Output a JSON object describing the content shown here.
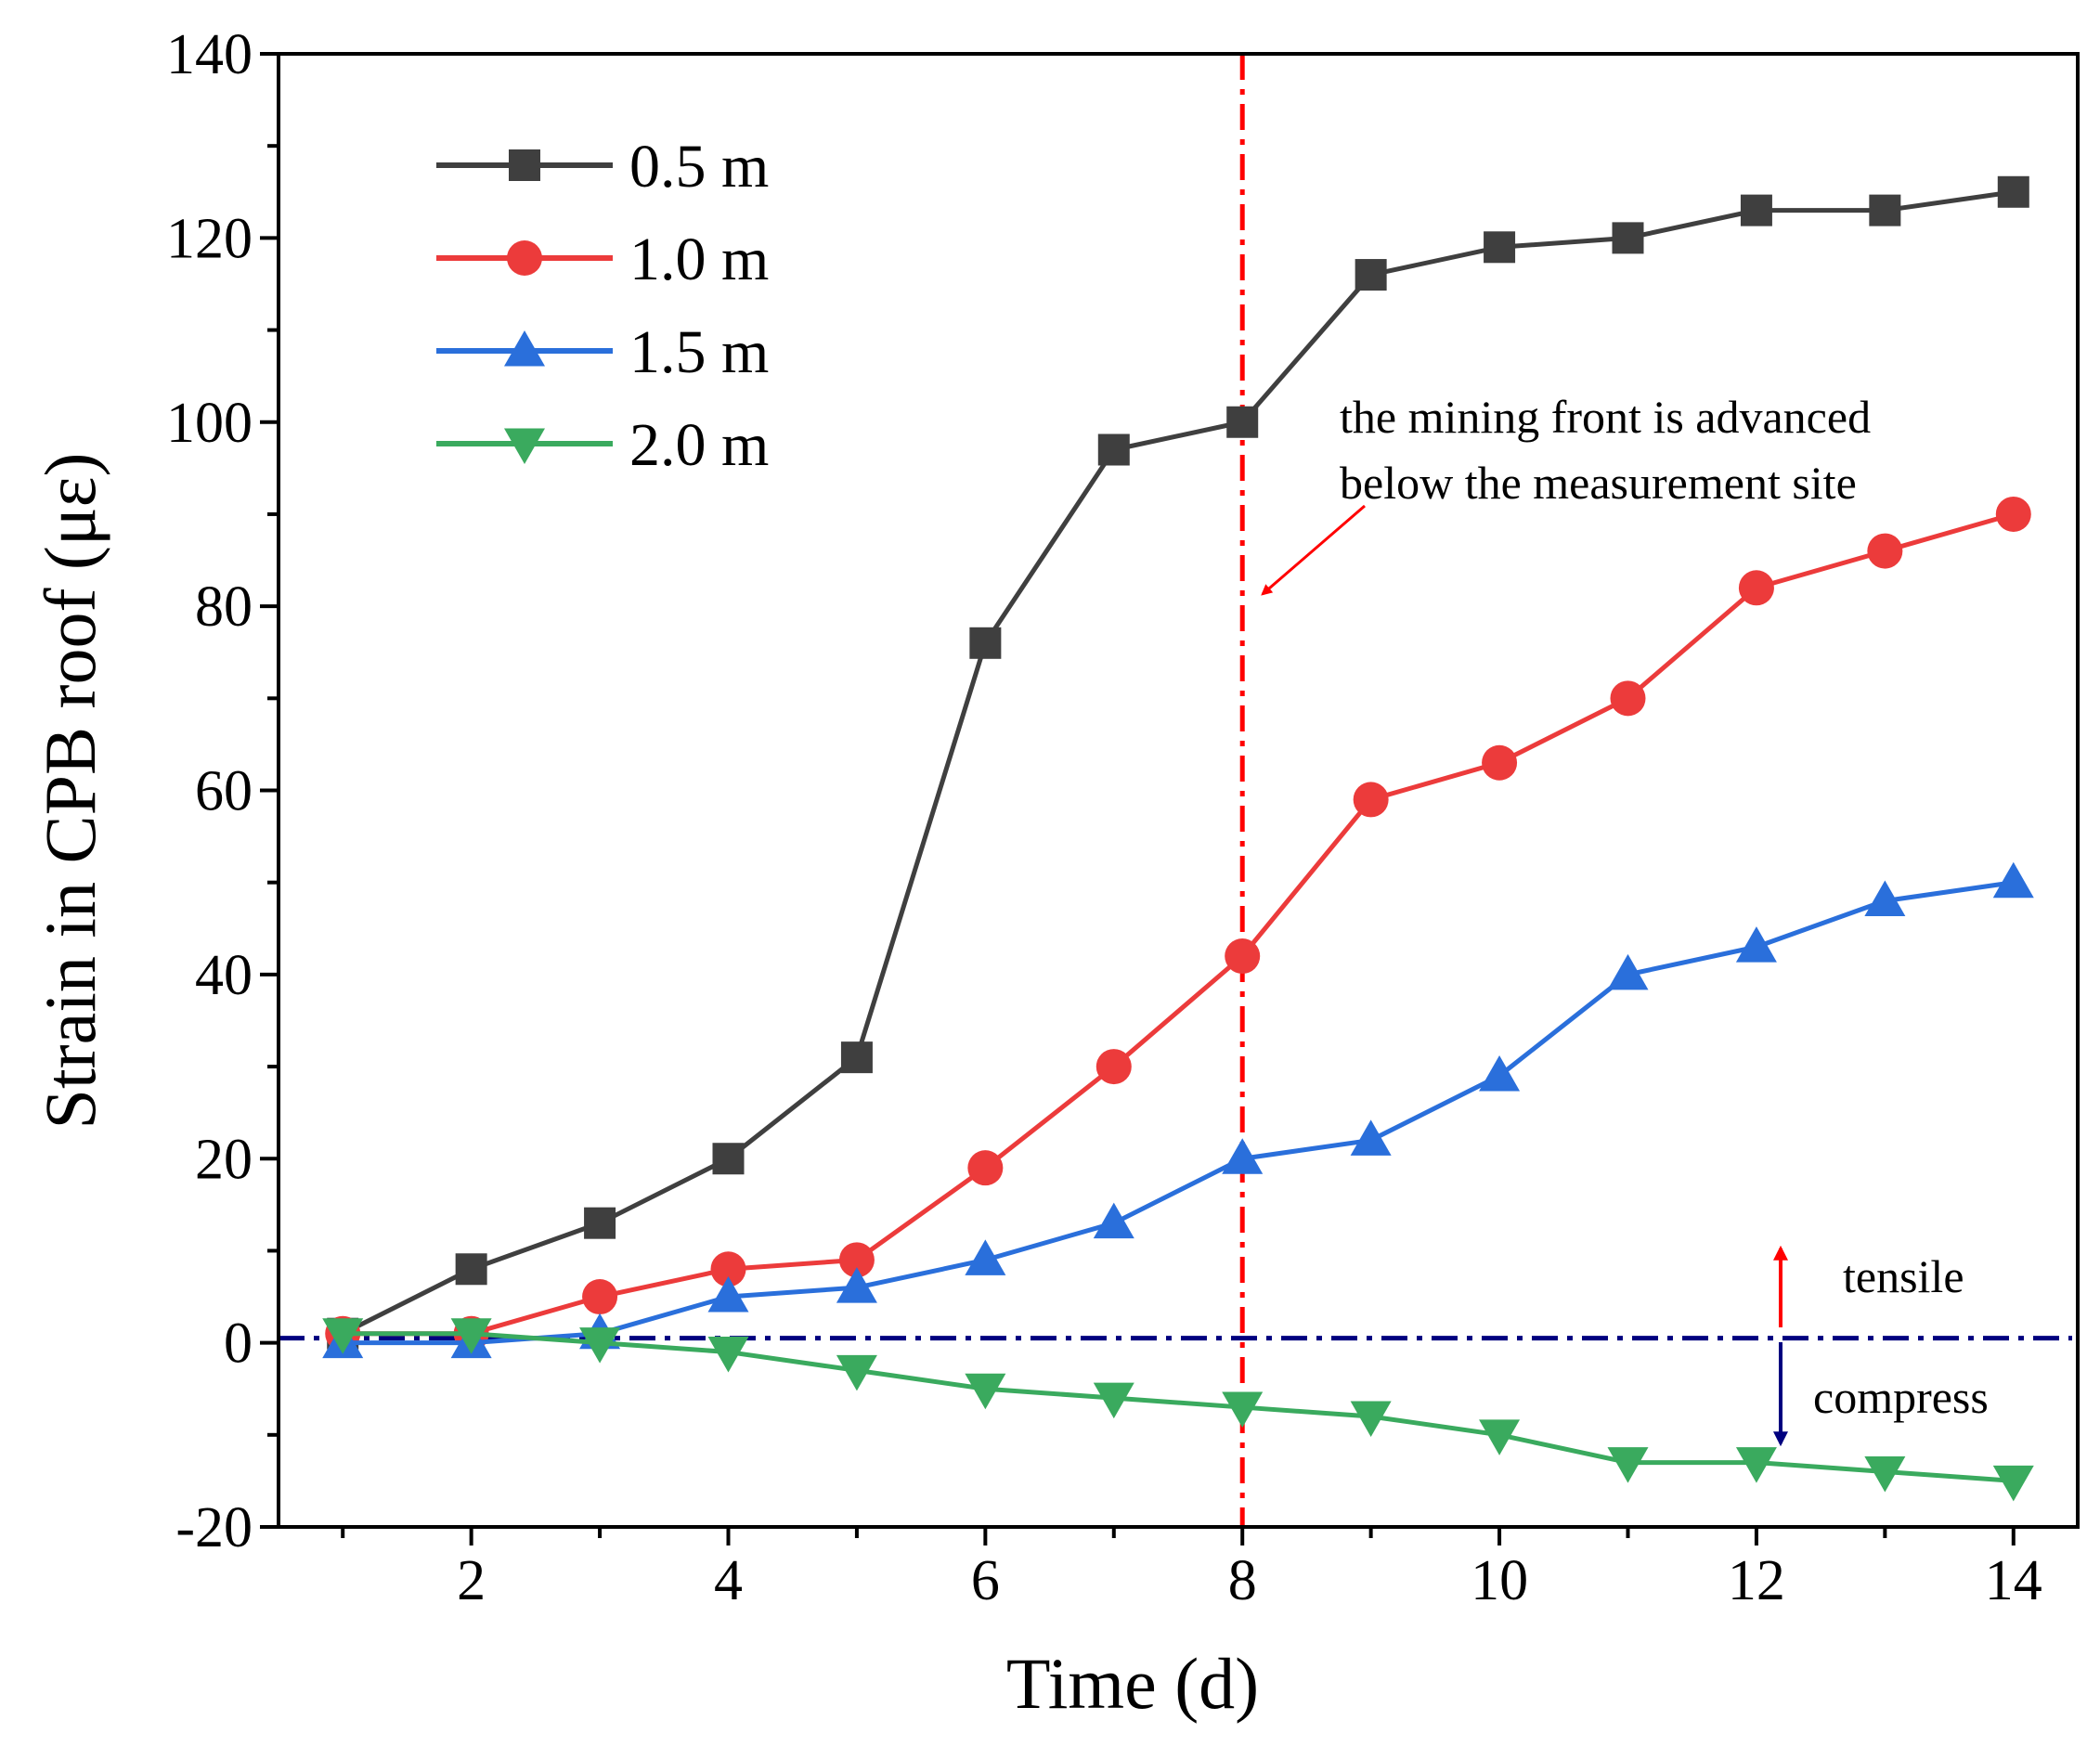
{
  "chart_data": {
    "type": "line",
    "xlabel": "Time (d)",
    "ylabel": "Strain in CPB roof (με)",
    "xlim": [
      0.5,
      14.5
    ],
    "ylim": [
      -20,
      140
    ],
    "xticks": [
      2,
      4,
      6,
      8,
      10,
      12,
      14
    ],
    "yticks": [
      -20,
      0,
      20,
      40,
      60,
      80,
      100,
      120,
      140
    ],
    "x": [
      1,
      2,
      3,
      4,
      5,
      6,
      7,
      8,
      9,
      10,
      11,
      12,
      13,
      14
    ],
    "legend_position": "top-left",
    "grid": false,
    "series": [
      {
        "name": "0.5 m",
        "color": "#3f3f3f",
        "marker": "square",
        "values": [
          1,
          8,
          13,
          20,
          31,
          76,
          97,
          100,
          116,
          119,
          120,
          123,
          123,
          125
        ]
      },
      {
        "name": "1.0 m",
        "color": "#ec3b3b",
        "marker": "circle",
        "values": [
          1,
          1,
          5,
          8,
          9,
          19,
          30,
          42,
          59,
          63,
          70,
          82,
          86,
          90
        ]
      },
      {
        "name": "1.5 m",
        "color": "#2a6fdb",
        "marker": "triangle-up",
        "values": [
          0,
          0,
          1,
          5,
          6,
          9,
          13,
          20,
          22,
          29,
          40,
          43,
          48,
          50
        ]
      },
      {
        "name": "2.0 m",
        "color": "#3aaa5e",
        "marker": "triangle-down",
        "values": [
          1,
          1,
          0,
          -1,
          -3,
          -5,
          -6,
          -7,
          -8,
          -10,
          -13,
          -13,
          -14,
          -15
        ]
      }
    ],
    "vertical_line": {
      "x": 8,
      "color": "#ff0000"
    },
    "horizontal_line": {
      "y": 0.5,
      "color": "#00007f"
    },
    "annotations": {
      "mining_front_line1": "the mining front is advanced",
      "mining_front_line2": "below the measurement site",
      "tensile": "tensile",
      "compress": "compress",
      "tensile_color": "#ff0000",
      "compress_color": "#00007f"
    }
  }
}
